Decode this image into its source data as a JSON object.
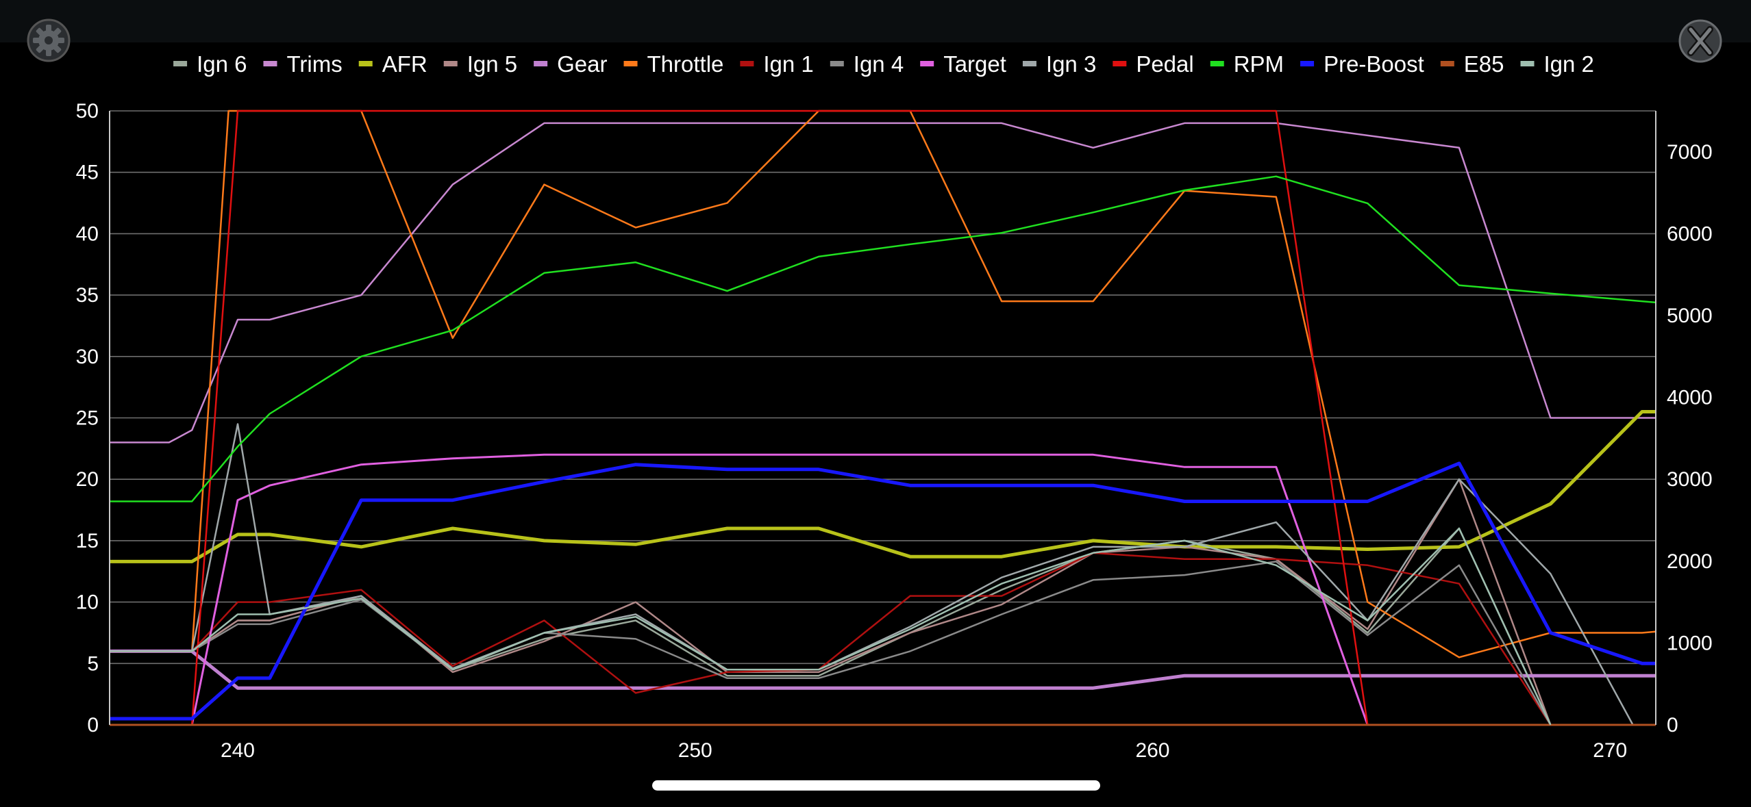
{
  "window": {
    "settings_icon": "gear-icon",
    "close_icon": "close-x-icon"
  },
  "chart_data": {
    "type": "line",
    "x_label": "",
    "y_left_label": "",
    "y_right_label": "",
    "xlim": [
      237.2,
      271
    ],
    "x_ticks": [
      240,
      250,
      260,
      270
    ],
    "y_left_lim": [
      0,
      50
    ],
    "y_left_ticks": [
      0,
      5,
      10,
      15,
      20,
      25,
      30,
      35,
      40,
      45,
      50
    ],
    "y_right_lim": [
      0,
      7500
    ],
    "y_right_ticks": [
      0,
      1000,
      2000,
      3000,
      4000,
      5000,
      6000,
      7000
    ],
    "grid": true,
    "legend_position": "top",
    "series": [
      {
        "name": "Ign 6",
        "color": "#9aa89a",
        "width": 2.5,
        "axis": "left",
        "points": [
          [
            237.2,
            6
          ],
          [
            239,
            6
          ],
          [
            240,
            8.5
          ],
          [
            240.7,
            8.5
          ],
          [
            242.7,
            10.5
          ],
          [
            244.7,
            4.5
          ],
          [
            246.7,
            7
          ],
          [
            248.7,
            8.5
          ],
          [
            250.7,
            4
          ],
          [
            252.7,
            4
          ],
          [
            254.7,
            7.5
          ],
          [
            256.7,
            11
          ],
          [
            258.7,
            14
          ],
          [
            260.7,
            15
          ],
          [
            262.7,
            13.5
          ],
          [
            264.7,
            7.5
          ],
          [
            266.7,
            16
          ],
          [
            268.7,
            0
          ]
        ]
      },
      {
        "name": "Trims",
        "color": "#c888d0",
        "width": 2.5,
        "axis": "left",
        "points": [
          [
            237.2,
            23
          ],
          [
            238.5,
            23
          ],
          [
            239,
            24
          ],
          [
            240,
            33
          ],
          [
            240.7,
            33
          ],
          [
            242.7,
            35
          ],
          [
            244.7,
            44
          ],
          [
            246.7,
            49
          ],
          [
            248.7,
            49
          ],
          [
            250.7,
            49
          ],
          [
            252.7,
            49
          ],
          [
            254.7,
            49
          ],
          [
            256.7,
            49
          ],
          [
            258.7,
            47
          ],
          [
            260.7,
            49
          ],
          [
            262.7,
            49
          ],
          [
            264.7,
            48
          ],
          [
            266.7,
            47
          ],
          [
            268.7,
            25
          ],
          [
            270.7,
            25
          ],
          [
            271,
            25
          ]
        ]
      },
      {
        "name": "AFR",
        "color": "#b8c21a",
        "width": 5,
        "axis": "left",
        "points": [
          [
            237.2,
            13.3
          ],
          [
            239,
            13.3
          ],
          [
            240,
            15.5
          ],
          [
            240.7,
            15.5
          ],
          [
            242.7,
            14.5
          ],
          [
            244.7,
            16
          ],
          [
            246.7,
            15
          ],
          [
            248.7,
            14.7
          ],
          [
            250.7,
            16
          ],
          [
            252.7,
            16
          ],
          [
            254.7,
            13.7
          ],
          [
            256.7,
            13.7
          ],
          [
            258.7,
            15
          ],
          [
            260.7,
            14.5
          ],
          [
            262.7,
            14.5
          ],
          [
            264.7,
            14.3
          ],
          [
            266.7,
            14.5
          ],
          [
            268.7,
            18
          ],
          [
            270.7,
            25.5
          ],
          [
            271,
            25.5
          ]
        ]
      },
      {
        "name": "Ign 5",
        "color": "#b08888",
        "width": 2.5,
        "axis": "left",
        "points": [
          [
            237.2,
            6
          ],
          [
            239,
            6
          ],
          [
            240,
            8.5
          ],
          [
            240.7,
            8.5
          ],
          [
            242.7,
            10.5
          ],
          [
            244.7,
            4.3
          ],
          [
            246.7,
            6.8
          ],
          [
            248.7,
            10
          ],
          [
            250.7,
            4.3
          ],
          [
            252.7,
            4.3
          ],
          [
            254.7,
            7.5
          ],
          [
            256.7,
            9.8
          ],
          [
            258.7,
            14
          ],
          [
            260.7,
            14.5
          ],
          [
            262.7,
            13.5
          ],
          [
            264.7,
            7.8
          ],
          [
            266.7,
            20
          ],
          [
            268.7,
            0
          ]
        ]
      },
      {
        "name": "Gear",
        "color": "#c080d0",
        "width": 5,
        "axis": "left",
        "points": [
          [
            237.2,
            6
          ],
          [
            239,
            6
          ],
          [
            240,
            3
          ],
          [
            240.7,
            3
          ],
          [
            242.7,
            3
          ],
          [
            244.7,
            3
          ],
          [
            246.7,
            3
          ],
          [
            248.7,
            3
          ],
          [
            250.7,
            3
          ],
          [
            252.7,
            3
          ],
          [
            254.7,
            3
          ],
          [
            256.7,
            3
          ],
          [
            258.7,
            3
          ],
          [
            260.7,
            4
          ],
          [
            262.7,
            4
          ],
          [
            264.7,
            4
          ],
          [
            266.7,
            4
          ],
          [
            268.7,
            4
          ],
          [
            270.7,
            4
          ],
          [
            271,
            4
          ]
        ]
      },
      {
        "name": "Throttle",
        "color": "#ff7a1a",
        "width": 2.5,
        "axis": "left",
        "points": [
          [
            237.2,
            6
          ],
          [
            239,
            6
          ],
          [
            239.8,
            50
          ],
          [
            242.7,
            50
          ],
          [
            244.7,
            31.5
          ],
          [
            246.7,
            44
          ],
          [
            248.7,
            40.5
          ],
          [
            250.7,
            42.5
          ],
          [
            252.7,
            50
          ],
          [
            254.7,
            50
          ],
          [
            256.7,
            34.5
          ],
          [
            258.7,
            34.5
          ],
          [
            260.7,
            43.5
          ],
          [
            262.7,
            43
          ],
          [
            264.7,
            10
          ],
          [
            266.7,
            5.5
          ],
          [
            268.7,
            7.5
          ],
          [
            270.7,
            7.5
          ],
          [
            271,
            7.6
          ]
        ]
      },
      {
        "name": "Ign 1",
        "color": "#b01010",
        "width": 2.5,
        "axis": "left",
        "points": [
          [
            237.2,
            6
          ],
          [
            239,
            6
          ],
          [
            240,
            10
          ],
          [
            240.7,
            10
          ],
          [
            242.7,
            11
          ],
          [
            244.7,
            4.8
          ],
          [
            246.7,
            8.5
          ],
          [
            248.7,
            2.6
          ],
          [
            250.7,
            4.3
          ],
          [
            252.7,
            4.5
          ],
          [
            254.7,
            10.5
          ],
          [
            256.7,
            10.5
          ],
          [
            258.7,
            14
          ],
          [
            260.7,
            13.5
          ],
          [
            262.7,
            13.5
          ],
          [
            264.7,
            13
          ],
          [
            266.7,
            11.5
          ],
          [
            268.7,
            0
          ]
        ]
      },
      {
        "name": "Ign 4",
        "color": "#8a8a8a",
        "width": 2.5,
        "axis": "left",
        "points": [
          [
            237.2,
            6
          ],
          [
            239,
            6
          ],
          [
            240,
            8.2
          ],
          [
            240.7,
            8.2
          ],
          [
            242.7,
            10.2
          ],
          [
            244.7,
            4.5
          ],
          [
            246.7,
            7.5
          ],
          [
            248.7,
            7
          ],
          [
            250.7,
            3.8
          ],
          [
            252.7,
            3.8
          ],
          [
            254.7,
            6
          ],
          [
            256.7,
            9
          ],
          [
            258.7,
            11.8
          ],
          [
            260.7,
            12.2
          ],
          [
            262.7,
            13.3
          ],
          [
            264.7,
            7.3
          ],
          [
            266.7,
            13
          ],
          [
            268.7,
            0
          ]
        ]
      },
      {
        "name": "Target",
        "color": "#e060e0",
        "width": 3,
        "axis": "left",
        "points": [
          [
            239,
            0
          ],
          [
            240,
            18.3
          ],
          [
            240.7,
            19.5
          ],
          [
            242.7,
            21.2
          ],
          [
            244.7,
            21.7
          ],
          [
            246.7,
            22
          ],
          [
            248.7,
            22
          ],
          [
            250.7,
            22
          ],
          [
            252.7,
            22
          ],
          [
            254.7,
            22
          ],
          [
            256.7,
            22
          ],
          [
            258.7,
            22
          ],
          [
            260.7,
            21
          ],
          [
            262.7,
            21
          ],
          [
            264.7,
            0
          ]
        ]
      },
      {
        "name": "Ign 3",
        "color": "#a0a8aa",
        "width": 2.5,
        "axis": "left",
        "points": [
          [
            237.2,
            6
          ],
          [
            239,
            6
          ],
          [
            240,
            24.5
          ],
          [
            240.7,
            9
          ],
          [
            242.7,
            10.5
          ],
          [
            244.7,
            4.6
          ],
          [
            246.7,
            7.5
          ],
          [
            248.7,
            9
          ],
          [
            250.7,
            4.5
          ],
          [
            252.7,
            4.5
          ],
          [
            254.7,
            8
          ],
          [
            256.7,
            12
          ],
          [
            258.7,
            14.5
          ],
          [
            260.7,
            14.5
          ],
          [
            262.7,
            16.5
          ],
          [
            264.7,
            8.5
          ],
          [
            266.7,
            20
          ],
          [
            268.7,
            12.3
          ],
          [
            270.5,
            0
          ]
        ]
      },
      {
        "name": "Pedal",
        "color": "#e01010",
        "width": 2.5,
        "axis": "left",
        "points": [
          [
            237.2,
            0
          ],
          [
            239,
            0
          ],
          [
            240,
            50
          ],
          [
            262.7,
            50
          ],
          [
            264.7,
            0
          ]
        ]
      },
      {
        "name": "RPM",
        "color": "#20e020",
        "width": 2.5,
        "axis": "right",
        "points": [
          [
            237.2,
            2730
          ],
          [
            239,
            2730
          ],
          [
            240,
            3400
          ],
          [
            240.7,
            3800
          ],
          [
            242.7,
            4500
          ],
          [
            244.7,
            4820
          ],
          [
            246.7,
            5520
          ],
          [
            248.7,
            5650
          ],
          [
            250.7,
            5300
          ],
          [
            252.7,
            5720
          ],
          [
            254.7,
            5870
          ],
          [
            256.7,
            6010
          ],
          [
            258.7,
            6260
          ],
          [
            260.7,
            6530
          ],
          [
            262.7,
            6700
          ],
          [
            264.7,
            6370
          ],
          [
            266.7,
            5370
          ],
          [
            268.7,
            5270
          ],
          [
            271,
            5160
          ]
        ]
      },
      {
        "name": "Pre-Boost",
        "color": "#1818ff",
        "width": 5,
        "axis": "left",
        "points": [
          [
            237.2,
            0.5
          ],
          [
            239,
            0.5
          ],
          [
            240,
            3.8
          ],
          [
            240.7,
            3.8
          ],
          [
            242.7,
            18.3
          ],
          [
            244.7,
            18.3
          ],
          [
            246.7,
            19.8
          ],
          [
            248.7,
            21.2
          ],
          [
            250.7,
            20.8
          ],
          [
            252.7,
            20.8
          ],
          [
            254.7,
            19.5
          ],
          [
            256.7,
            19.5
          ],
          [
            258.7,
            19.5
          ],
          [
            260.7,
            18.2
          ],
          [
            262.7,
            18.2
          ],
          [
            264.7,
            18.2
          ],
          [
            266.7,
            21.3
          ],
          [
            268.7,
            7.5
          ],
          [
            270.7,
            5
          ],
          [
            271,
            5
          ]
        ]
      },
      {
        "name": "E85",
        "color": "#b05020",
        "width": 3,
        "axis": "left",
        "points": [
          [
            237.2,
            0
          ],
          [
            271,
            0
          ]
        ]
      },
      {
        "name": "Ign 2",
        "color": "#9fbfb0",
        "width": 2.5,
        "axis": "left",
        "points": [
          [
            237.2,
            6
          ],
          [
            239,
            6
          ],
          [
            240,
            9
          ],
          [
            240.7,
            9
          ],
          [
            242.7,
            10.3
          ],
          [
            244.7,
            4.5
          ],
          [
            246.7,
            7.5
          ],
          [
            248.7,
            8.8
          ],
          [
            250.7,
            4.5
          ],
          [
            252.7,
            4.5
          ],
          [
            254.7,
            7.8
          ],
          [
            256.7,
            11.5
          ],
          [
            258.7,
            14
          ],
          [
            260.7,
            15
          ],
          [
            262.7,
            13
          ],
          [
            264.7,
            8.5
          ],
          [
            266.7,
            16
          ],
          [
            268.7,
            0
          ]
        ]
      }
    ]
  }
}
